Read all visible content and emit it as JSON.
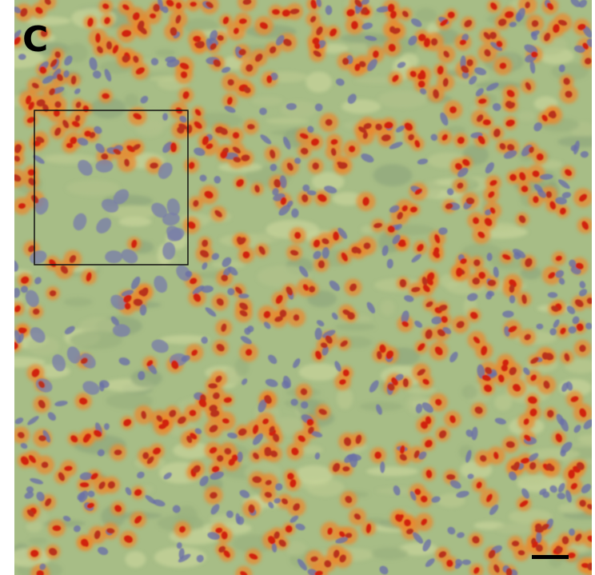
{
  "panel_label": "C"
}
